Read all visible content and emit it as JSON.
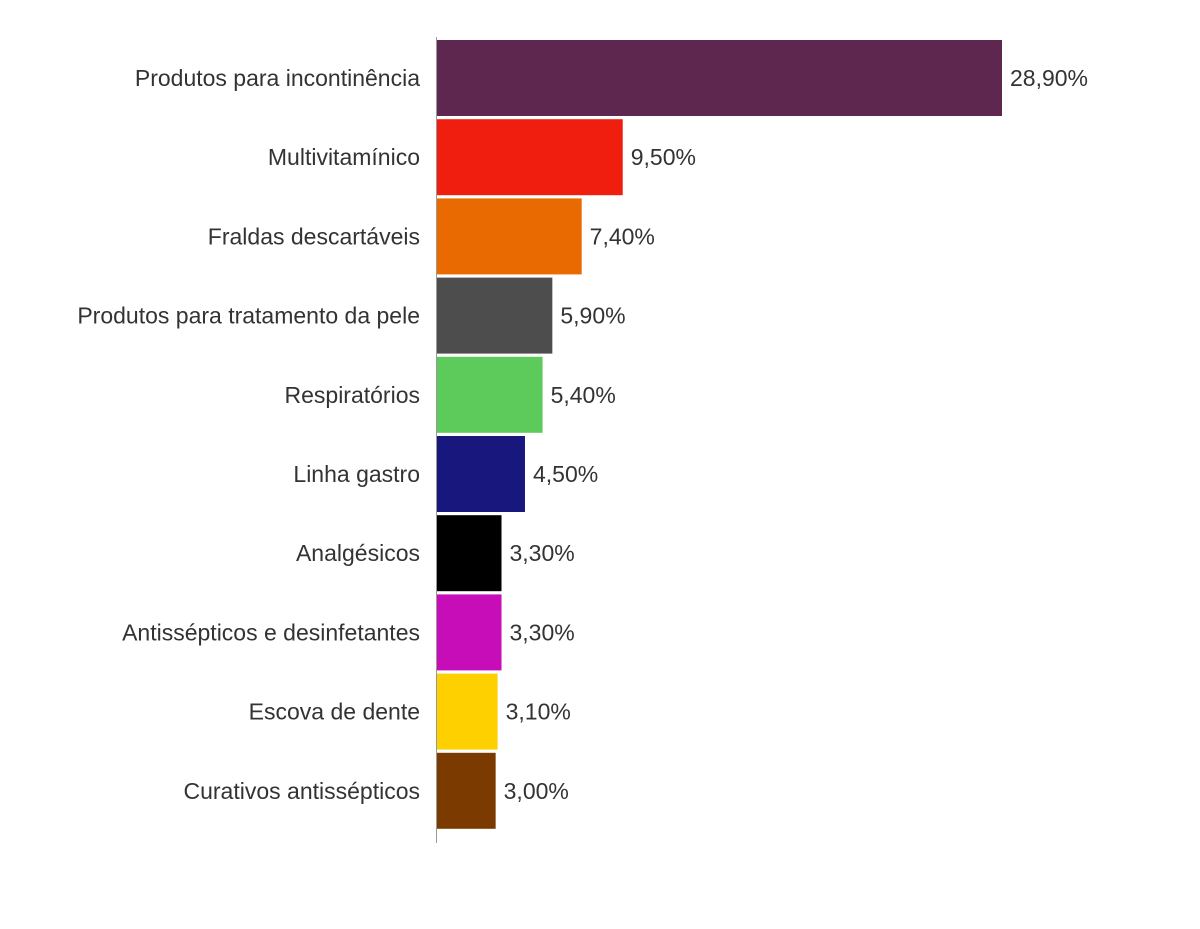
{
  "chart_data": {
    "type": "bar",
    "orientation": "horizontal",
    "categories": [
      "Produtos para incontinência",
      "Multivitamínico",
      "Fraldas descartáveis",
      "Produtos para tratamento da pele",
      "Respiratórios",
      "Linha gastro",
      "Analgésicos",
      "Antissépticos e desinfetantes",
      "Escova de dente",
      "Curativos antissépticos"
    ],
    "values": [
      28.9,
      9.5,
      7.4,
      5.9,
      5.4,
      4.5,
      3.3,
      3.3,
      3.1,
      3.0
    ],
    "value_labels": [
      "28,90%",
      "9,50%",
      "7,40%",
      "5,90%",
      "5,40%",
      "4,50%",
      "3,30%",
      "3,30%",
      "3,10%",
      "3,00%"
    ],
    "colors": [
      "#5e2750",
      "#f01e0e",
      "#e86a00",
      "#4d4d4d",
      "#5ccb5b",
      "#18177e",
      "#000000",
      "#c70db8",
      "#ffd000",
      "#7b3b00"
    ],
    "title": "",
    "xlabel": "",
    "ylabel": "",
    "xlim": [
      0,
      28.9
    ],
    "grid": false,
    "legend": "none"
  }
}
